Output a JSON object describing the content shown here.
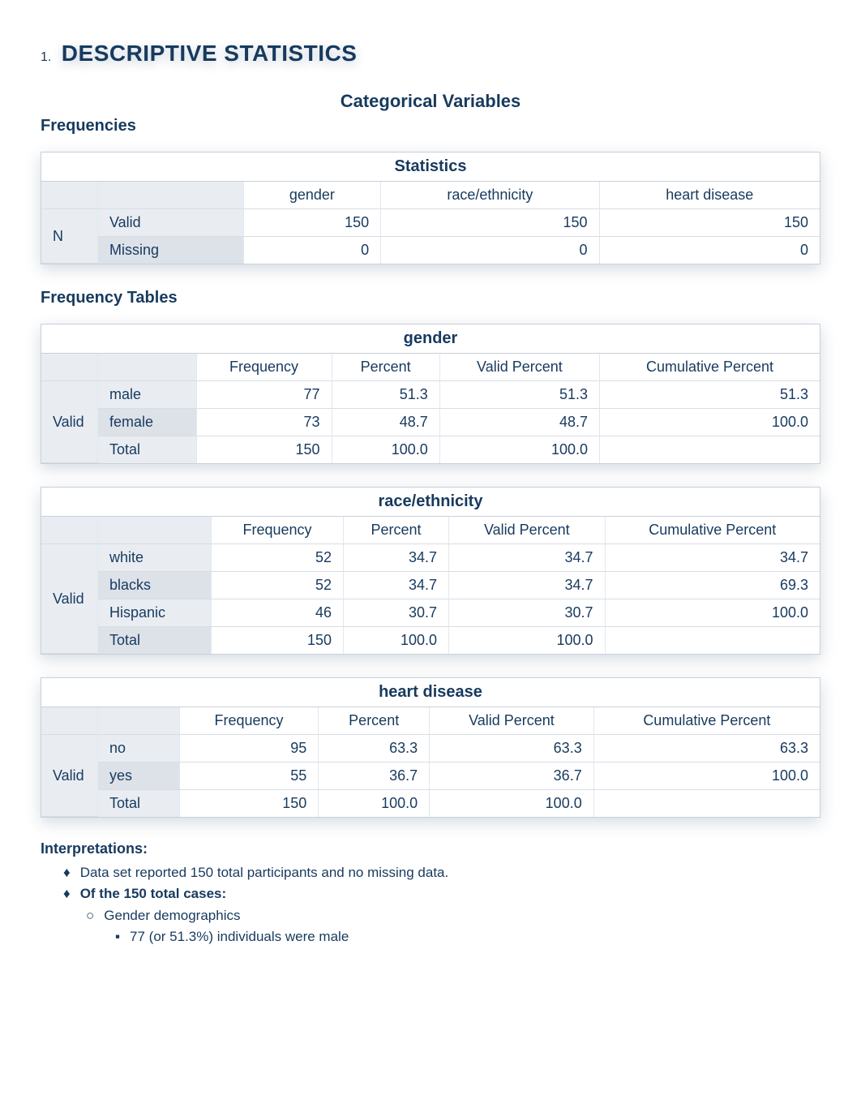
{
  "colors": {
    "text": "#173a5e",
    "tableBorder": "#c8d0da",
    "rowShade": "#e9edf2",
    "rowShadeAlt": "#dde2e9",
    "background": "#ffffff"
  },
  "typography": {
    "titleFontSize": 28,
    "subtitleFontSize": 22,
    "headingFontSize": 20,
    "cellFontSize": 18,
    "bodyFontSize": 17
  },
  "heading": {
    "number": "1.",
    "title": "DESCRIPTIVE STATISTICS"
  },
  "subtitle": "Categorical Variables",
  "frequenciesLabel": "Frequencies",
  "freqTablesLabel": "Frequency Tables",
  "statsTable": {
    "title": "Statistics",
    "columns": [
      "gender",
      "race/ethnicity",
      "heart disease"
    ],
    "rowGroupLabel": "N",
    "rows": [
      {
        "label": "Valid",
        "values": [
          "150",
          "150",
          "150"
        ]
      },
      {
        "label": "Missing",
        "values": [
          "0",
          "0",
          "0"
        ]
      }
    ]
  },
  "freqTables": [
    {
      "title": "gender",
      "columns": [
        "Frequency",
        "Percent",
        "Valid Percent",
        "Cumulative Percent"
      ],
      "groupLabel": "Valid",
      "rows": [
        {
          "label": "male",
          "values": [
            "77",
            "51.3",
            "51.3",
            "51.3"
          ]
        },
        {
          "label": "female",
          "values": [
            "73",
            "48.7",
            "48.7",
            "100.0"
          ]
        },
        {
          "label": "Total",
          "values": [
            "150",
            "100.0",
            "100.0",
            ""
          ]
        }
      ]
    },
    {
      "title": "race/ethnicity",
      "columns": [
        "Frequency",
        "Percent",
        "Valid Percent",
        "Cumulative Percent"
      ],
      "groupLabel": "Valid",
      "rows": [
        {
          "label": "white",
          "values": [
            "52",
            "34.7",
            "34.7",
            "34.7"
          ]
        },
        {
          "label": "blacks",
          "values": [
            "52",
            "34.7",
            "34.7",
            "69.3"
          ]
        },
        {
          "label": "Hispanic",
          "values": [
            "46",
            "30.7",
            "30.7",
            "100.0"
          ]
        },
        {
          "label": "Total",
          "values": [
            "150",
            "100.0",
            "100.0",
            ""
          ]
        }
      ]
    },
    {
      "title": "heart disease",
      "columns": [
        "Frequency",
        "Percent",
        "Valid Percent",
        "Cumulative Percent"
      ],
      "groupLabel": "Valid",
      "rows": [
        {
          "label": "no",
          "values": [
            "95",
            "63.3",
            "63.3",
            "63.3"
          ]
        },
        {
          "label": "yes",
          "values": [
            "55",
            "36.7",
            "36.7",
            "100.0"
          ]
        },
        {
          "label": "Total",
          "values": [
            "150",
            "100.0",
            "100.0",
            ""
          ]
        }
      ]
    }
  ],
  "interpretations": {
    "title": "Interpretations:",
    "items": [
      {
        "text": "Data set reported 150 total participants and no missing data.",
        "bold": false
      },
      {
        "text": "Of the 150 total cases:",
        "bold": true,
        "children": [
          {
            "text": "Gender demographics",
            "children": [
              {
                "text": "77 (or 51.3%) individuals were male"
              }
            ]
          }
        ]
      }
    ]
  }
}
